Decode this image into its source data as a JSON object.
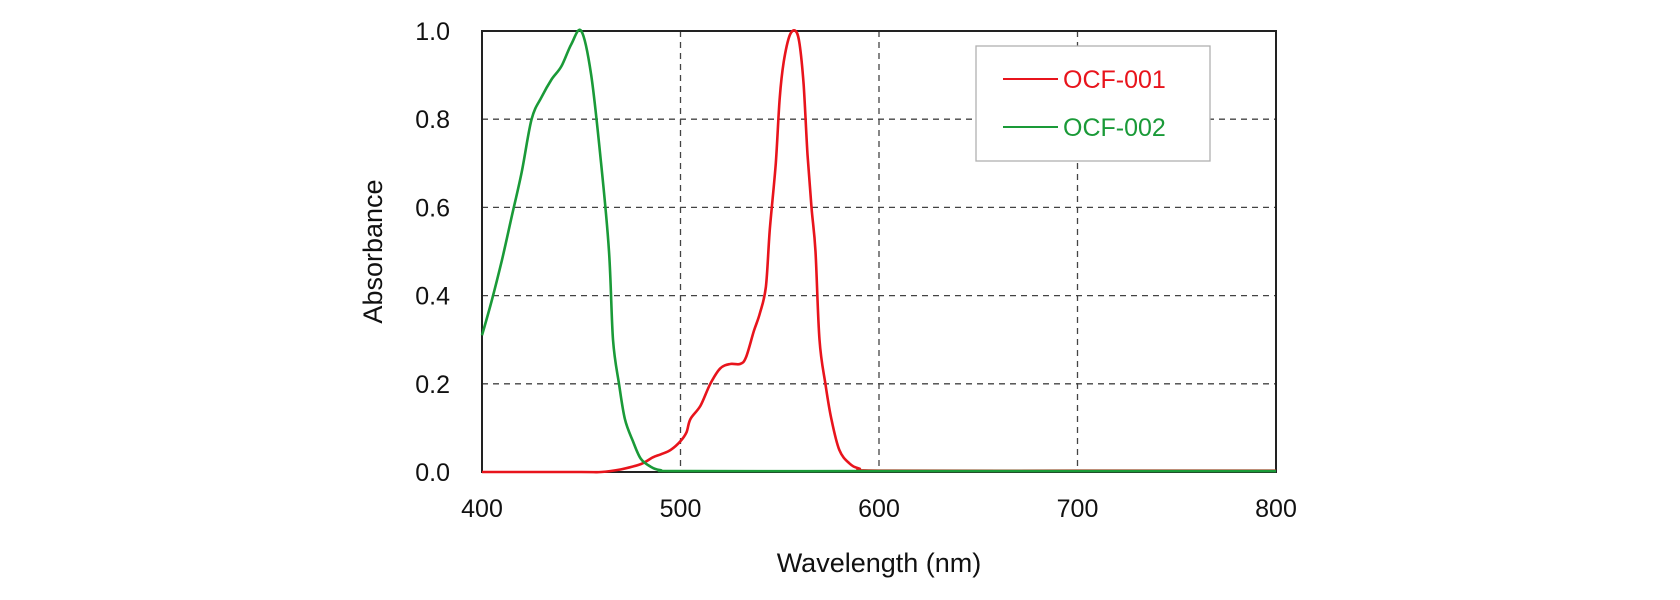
{
  "chart_data": {
    "type": "line",
    "title": "",
    "xlabel": "Wavelength (nm)",
    "ylabel": "Absorbance",
    "xlim": [
      400,
      800
    ],
    "ylim": [
      0.0,
      1.0
    ],
    "x_ticks": [
      "400",
      "500",
      "600",
      "700",
      "800"
    ],
    "y_ticks": [
      "0.0",
      "0.2",
      "0.4",
      "0.6",
      "0.8",
      "1.0"
    ],
    "grid": true,
    "legend_position": "top-right",
    "series": [
      {
        "name": "OCF-001",
        "color": "#e8141c",
        "points": [
          [
            400,
            0.0
          ],
          [
            450,
            0.0
          ],
          [
            460,
            0.0
          ],
          [
            470,
            0.006
          ],
          [
            480,
            0.018
          ],
          [
            486,
            0.033
          ],
          [
            490,
            0.04
          ],
          [
            495,
            0.05
          ],
          [
            500,
            0.07
          ],
          [
            503,
            0.09
          ],
          [
            505,
            0.12
          ],
          [
            510,
            0.15
          ],
          [
            515,
            0.2
          ],
          [
            520,
            0.235
          ],
          [
            525,
            0.245
          ],
          [
            530,
            0.245
          ],
          [
            533,
            0.26
          ],
          [
            537,
            0.32
          ],
          [
            540,
            0.36
          ],
          [
            543,
            0.42
          ],
          [
            545,
            0.55
          ],
          [
            548,
            0.7
          ],
          [
            550,
            0.85
          ],
          [
            552,
            0.93
          ],
          [
            555,
            0.99
          ],
          [
            558,
            1.0
          ],
          [
            560,
            0.97
          ],
          [
            562,
            0.88
          ],
          [
            564,
            0.72
          ],
          [
            566,
            0.6
          ],
          [
            568,
            0.5
          ],
          [
            570,
            0.3
          ],
          [
            573,
            0.2
          ],
          [
            576,
            0.12
          ],
          [
            580,
            0.05
          ],
          [
            585,
            0.02
          ],
          [
            590,
            0.008
          ],
          [
            600,
            0.003
          ],
          [
            700,
            0.003
          ],
          [
            800,
            0.003
          ]
        ]
      },
      {
        "name": "OCF-002",
        "color": "#1a9a38",
        "points": [
          [
            400,
            0.31
          ],
          [
            405,
            0.39
          ],
          [
            410,
            0.48
          ],
          [
            415,
            0.58
          ],
          [
            420,
            0.68
          ],
          [
            425,
            0.8
          ],
          [
            430,
            0.85
          ],
          [
            435,
            0.89
          ],
          [
            440,
            0.92
          ],
          [
            445,
            0.97
          ],
          [
            450,
            1.0
          ],
          [
            455,
            0.9
          ],
          [
            460,
            0.7
          ],
          [
            464,
            0.5
          ],
          [
            466,
            0.3
          ],
          [
            469,
            0.2
          ],
          [
            472,
            0.12
          ],
          [
            476,
            0.07
          ],
          [
            480,
            0.03
          ],
          [
            485,
            0.012
          ],
          [
            490,
            0.004
          ],
          [
            500,
            0.002
          ],
          [
            600,
            0.002
          ],
          [
            700,
            0.002
          ],
          [
            800,
            0.002
          ]
        ]
      }
    ]
  }
}
